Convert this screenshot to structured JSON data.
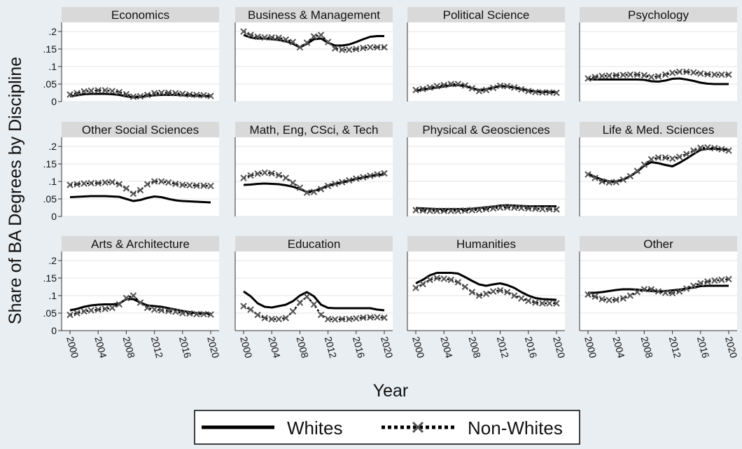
{
  "chart_data": {
    "type": "line",
    "ylabel": "Share of BA Degrees by Discipline",
    "xlabel": "Year",
    "xlim": [
      2000,
      2020
    ],
    "ylim": [
      0,
      0.2
    ],
    "x_ticks": [
      "2000",
      "2004",
      "2008",
      "2012",
      "2016",
      "2020"
    ],
    "y_ticks": [
      "0",
      ".05",
      ".1",
      ".15",
      ".2"
    ],
    "legend": {
      "placement": "bottom",
      "entries": [
        "Whites",
        "Non-Whites"
      ]
    },
    "x": [
      2000,
      2001,
      2002,
      2003,
      2004,
      2005,
      2006,
      2007,
      2008,
      2009,
      2010,
      2011,
      2012,
      2013,
      2014,
      2015,
      2016,
      2017,
      2018,
      2019,
      2020
    ],
    "panels": [
      {
        "title": "Economics",
        "series": [
          {
            "name": "Whites",
            "values": [
              0.015,
              0.018,
              0.021,
              0.022,
              0.022,
              0.022,
              0.021,
              0.019,
              0.015,
              0.012,
              0.013,
              0.016,
              0.018,
              0.019,
              0.019,
              0.019,
              0.018,
              0.017,
              0.016,
              0.016,
              0.015
            ]
          },
          {
            "name": "Non-Whites",
            "values": [
              0.02,
              0.024,
              0.029,
              0.031,
              0.032,
              0.032,
              0.03,
              0.027,
              0.021,
              0.014,
              0.015,
              0.019,
              0.024,
              0.025,
              0.025,
              0.024,
              0.022,
              0.02,
              0.019,
              0.018,
              0.016
            ]
          }
        ]
      },
      {
        "title": "Business & Management",
        "series": [
          {
            "name": "Whites",
            "values": [
              0.19,
              0.183,
              0.18,
              0.18,
              0.178,
              0.176,
              0.172,
              0.165,
              0.155,
              0.165,
              0.178,
              0.18,
              0.168,
              0.16,
              0.16,
              0.163,
              0.17,
              0.178,
              0.185,
              0.187,
              0.187
            ]
          },
          {
            "name": "Non-Whites",
            "values": [
              0.2,
              0.19,
              0.185,
              0.183,
              0.183,
              0.182,
              0.177,
              0.17,
              0.155,
              0.168,
              0.186,
              0.19,
              0.17,
              0.152,
              0.148,
              0.148,
              0.15,
              0.153,
              0.155,
              0.155,
              0.155
            ]
          }
        ]
      },
      {
        "title": "Political Science",
        "series": [
          {
            "name": "Whites",
            "values": [
              0.031,
              0.034,
              0.037,
              0.04,
              0.043,
              0.046,
              0.047,
              0.044,
              0.038,
              0.033,
              0.035,
              0.04,
              0.044,
              0.043,
              0.04,
              0.036,
              0.032,
              0.029,
              0.028,
              0.028,
              0.027
            ]
          },
          {
            "name": "Non-Whites",
            "values": [
              0.033,
              0.036,
              0.04,
              0.044,
              0.047,
              0.05,
              0.05,
              0.046,
              0.038,
              0.03,
              0.033,
              0.039,
              0.045,
              0.044,
              0.04,
              0.035,
              0.03,
              0.027,
              0.026,
              0.026,
              0.025
            ]
          }
        ]
      },
      {
        "title": "Psychology",
        "series": [
          {
            "name": "Whites",
            "values": [
              0.064,
              0.063,
              0.063,
              0.063,
              0.063,
              0.063,
              0.063,
              0.063,
              0.062,
              0.058,
              0.057,
              0.06,
              0.065,
              0.066,
              0.063,
              0.059,
              0.054,
              0.051,
              0.05,
              0.05,
              0.05
            ]
          },
          {
            "name": "Non-Whites",
            "values": [
              0.066,
              0.07,
              0.073,
              0.074,
              0.075,
              0.076,
              0.077,
              0.077,
              0.075,
              0.07,
              0.072,
              0.077,
              0.082,
              0.085,
              0.085,
              0.083,
              0.08,
              0.078,
              0.077,
              0.077,
              0.077
            ]
          }
        ]
      },
      {
        "title": "Other Social Sciences",
        "series": [
          {
            "name": "Whites",
            "values": [
              0.055,
              0.056,
              0.057,
              0.058,
              0.058,
              0.058,
              0.057,
              0.056,
              0.05,
              0.044,
              0.047,
              0.053,
              0.057,
              0.055,
              0.05,
              0.046,
              0.044,
              0.043,
              0.042,
              0.041,
              0.04
            ]
          },
          {
            "name": "Non-Whites",
            "values": [
              0.09,
              0.092,
              0.094,
              0.095,
              0.095,
              0.097,
              0.098,
              0.092,
              0.08,
              0.065,
              0.075,
              0.092,
              0.1,
              0.1,
              0.097,
              0.093,
              0.09,
              0.089,
              0.088,
              0.088,
              0.087
            ]
          }
        ]
      },
      {
        "title": "Math, Eng, CSci, & Tech",
        "series": [
          {
            "name": "Whites",
            "values": [
              0.09,
              0.091,
              0.093,
              0.094,
              0.093,
              0.092,
              0.089,
              0.085,
              0.078,
              0.07,
              0.073,
              0.08,
              0.088,
              0.093,
              0.097,
              0.102,
              0.107,
              0.111,
              0.115,
              0.118,
              0.12
            ]
          },
          {
            "name": "Non-Whites",
            "values": [
              0.11,
              0.117,
              0.122,
              0.125,
              0.123,
              0.118,
              0.11,
              0.096,
              0.082,
              0.068,
              0.07,
              0.078,
              0.087,
              0.093,
              0.098,
              0.103,
              0.108,
              0.112,
              0.116,
              0.12,
              0.123
            ]
          }
        ]
      },
      {
        "title": "Physical & Geosciences",
        "series": [
          {
            "name": "Whites",
            "values": [
              0.024,
              0.023,
              0.022,
              0.021,
              0.021,
              0.021,
              0.021,
              0.021,
              0.022,
              0.024,
              0.026,
              0.028,
              0.031,
              0.032,
              0.031,
              0.03,
              0.029,
              0.029,
              0.029,
              0.029,
              0.029
            ]
          },
          {
            "name": "Non-Whites",
            "values": [
              0.018,
              0.017,
              0.016,
              0.016,
              0.016,
              0.016,
              0.016,
              0.017,
              0.018,
              0.019,
              0.021,
              0.023,
              0.025,
              0.026,
              0.025,
              0.024,
              0.023,
              0.022,
              0.021,
              0.021,
              0.02
            ]
          }
        ]
      },
      {
        "title": "Life & Med. Sciences",
        "series": [
          {
            "name": "Whites",
            "values": [
              0.122,
              0.113,
              0.105,
              0.1,
              0.1,
              0.105,
              0.115,
              0.128,
              0.145,
              0.155,
              0.152,
              0.147,
              0.143,
              0.153,
              0.165,
              0.178,
              0.19,
              0.193,
              0.193,
              0.192,
              0.19
            ]
          },
          {
            "name": "Non-Whites",
            "values": [
              0.12,
              0.11,
              0.1,
              0.097,
              0.098,
              0.105,
              0.115,
              0.13,
              0.148,
              0.163,
              0.168,
              0.168,
              0.165,
              0.17,
              0.178,
              0.188,
              0.196,
              0.197,
              0.195,
              0.192,
              0.188
            ]
          }
        ]
      },
      {
        "title": "Arts & Architecture",
        "series": [
          {
            "name": "Whites",
            "values": [
              0.058,
              0.062,
              0.068,
              0.072,
              0.074,
              0.075,
              0.075,
              0.077,
              0.09,
              0.09,
              0.08,
              0.072,
              0.07,
              0.068,
              0.064,
              0.06,
              0.056,
              0.053,
              0.05,
              0.05,
              0.049
            ]
          },
          {
            "name": "Non-Whites",
            "values": [
              0.045,
              0.05,
              0.055,
              0.058,
              0.06,
              0.062,
              0.065,
              0.075,
              0.093,
              0.1,
              0.08,
              0.065,
              0.06,
              0.058,
              0.056,
              0.054,
              0.05,
              0.049,
              0.047,
              0.047,
              0.046
            ]
          }
        ]
      },
      {
        "title": "Education",
        "series": [
          {
            "name": "Whites",
            "values": [
              0.112,
              0.098,
              0.078,
              0.068,
              0.066,
              0.07,
              0.074,
              0.084,
              0.1,
              0.11,
              0.098,
              0.074,
              0.065,
              0.064,
              0.064,
              0.064,
              0.064,
              0.064,
              0.064,
              0.06,
              0.058
            ]
          },
          {
            "name": "Non-Whites",
            "values": [
              0.07,
              0.06,
              0.045,
              0.036,
              0.033,
              0.033,
              0.036,
              0.055,
              0.08,
              0.097,
              0.075,
              0.045,
              0.033,
              0.032,
              0.033,
              0.033,
              0.035,
              0.037,
              0.038,
              0.038,
              0.037
            ]
          }
        ]
      },
      {
        "title": "Humanities",
        "series": [
          {
            "name": "Whites",
            "values": [
              0.135,
              0.145,
              0.158,
              0.165,
              0.165,
              0.165,
              0.163,
              0.153,
              0.142,
              0.132,
              0.128,
              0.132,
              0.135,
              0.13,
              0.122,
              0.11,
              0.1,
              0.093,
              0.09,
              0.089,
              0.088
            ]
          },
          {
            "name": "Non-Whites",
            "values": [
              0.122,
              0.133,
              0.145,
              0.15,
              0.148,
              0.145,
              0.138,
              0.125,
              0.11,
              0.1,
              0.105,
              0.112,
              0.115,
              0.11,
              0.1,
              0.092,
              0.085,
              0.08,
              0.078,
              0.078,
              0.078
            ]
          }
        ]
      },
      {
        "title": "Other",
        "series": [
          {
            "name": "Whites",
            "values": [
              0.108,
              0.108,
              0.11,
              0.113,
              0.116,
              0.118,
              0.118,
              0.117,
              0.115,
              0.113,
              0.112,
              0.113,
              0.115,
              0.117,
              0.12,
              0.123,
              0.127,
              0.128,
              0.128,
              0.128,
              0.128
            ]
          },
          {
            "name": "Non-Whites",
            "values": [
              0.103,
              0.097,
              0.09,
              0.087,
              0.088,
              0.092,
              0.1,
              0.11,
              0.118,
              0.118,
              0.112,
              0.108,
              0.107,
              0.112,
              0.12,
              0.128,
              0.135,
              0.14,
              0.143,
              0.145,
              0.147
            ]
          }
        ]
      }
    ]
  }
}
